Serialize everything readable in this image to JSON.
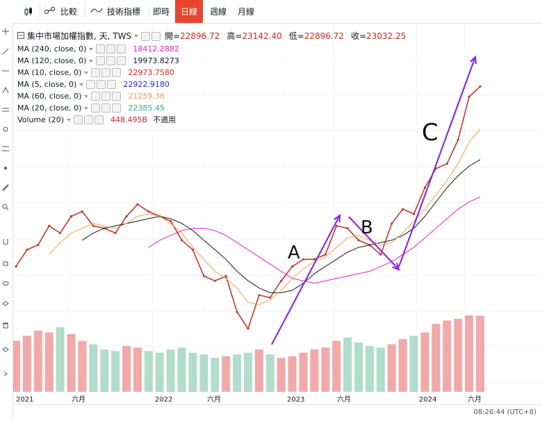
{
  "toolbar": {
    "compare": "比較",
    "indicators": "技術指標",
    "realtime": "即時",
    "daily": "日線",
    "weekly": "週線",
    "monthly": "月線"
  },
  "legend": {
    "title": "集中市場加權指數, 天, TWS",
    "open_label": "開=",
    "open": "22896.72",
    "high_label": "高=",
    "high": "23142.40",
    "low_label": "低=",
    "low": "22896.72",
    "close_label": "收=",
    "close": "23032.25",
    "indicators": [
      {
        "name": "MA (240, close, 0)",
        "value": "18412.2882",
        "color": "#e91ec8"
      },
      {
        "name": "MA (120, close, 0)",
        "value": "19973.8273",
        "color": "#131722"
      },
      {
        "name": "MA (10, close, 0)",
        "value": "22973.7580",
        "color": "#d0271d"
      },
      {
        "name": "MA (5, close, 0)",
        "value": "22922.9180",
        "color": "#1f2fd0"
      },
      {
        "name": "MA (60, close, 0)",
        "value": "21259.36",
        "color": "#f0a24a"
      },
      {
        "name": "MA (20, close, 0)",
        "value": "22385.45",
        "color": "#39a88a"
      },
      {
        "name": "Volume (20)",
        "value": "448.495B",
        "color": "#d0271d",
        "extra": "不適用"
      }
    ]
  },
  "status": {
    "time": "08:26:44 (UTC+8)"
  },
  "annotations": {
    "a": "A",
    "b": "B",
    "c": "C"
  },
  "chart_data": {
    "type": "line",
    "title": "集中市場加權指數, 天, TWS",
    "x_tick_labels": [
      "2021",
      "六月",
      "2022",
      "六月",
      "2023",
      "六月",
      "2024",
      "六月"
    ],
    "x": [
      "2021-01",
      "2021-02",
      "2021-03",
      "2021-04",
      "2021-05",
      "2021-06",
      "2021-07",
      "2021-08",
      "2021-09",
      "2021-10",
      "2021-11",
      "2021-12",
      "2022-01",
      "2022-02",
      "2022-03",
      "2022-04",
      "2022-05",
      "2022-06",
      "2022-07",
      "2022-08",
      "2022-09",
      "2022-10",
      "2022-11",
      "2022-12",
      "2023-01",
      "2023-02",
      "2023-03",
      "2023-04",
      "2023-05",
      "2023-06",
      "2023-07",
      "2023-08",
      "2023-09",
      "2023-10",
      "2023-11",
      "2023-12",
      "2024-01",
      "2024-02",
      "2024-03",
      "2024-04",
      "2024-05",
      "2024-06",
      "2024-07"
    ],
    "series": [
      {
        "name": "集中市場加權指數",
        "color": "#c0392b",
        "values": [
          15500,
          16200,
          16400,
          17200,
          16900,
          17600,
          17800,
          17200,
          17100,
          16900,
          17600,
          18100,
          17800,
          17600,
          17400,
          16600,
          16200,
          15100,
          14900,
          15100,
          13600,
          12900,
          14300,
          14200,
          14900,
          15500,
          15800,
          15800,
          16000,
          17200,
          17100,
          16600,
          16400,
          16000,
          17300,
          17900,
          17700,
          18800,
          19600,
          19800,
          20800,
          22600,
          23032
        ]
      },
      {
        "name": "MA (240, close, 0)",
        "color": "#e91ec8",
        "values": [
          null,
          null,
          null,
          null,
          null,
          null,
          null,
          null,
          null,
          null,
          null,
          null,
          16300,
          16600,
          16800,
          17000,
          17100,
          17100,
          17000,
          16800,
          16500,
          16200,
          15900,
          15600,
          15300,
          15000,
          14900,
          14800,
          14900,
          15000,
          15100,
          15200,
          15300,
          15500,
          15700,
          16000,
          16300,
          16700,
          17100,
          17500,
          17900,
          18200,
          18412
        ]
      },
      {
        "name": "MA (120, close, 0)",
        "color": "#131722",
        "values": [
          null,
          null,
          null,
          null,
          null,
          null,
          16600,
          16900,
          17100,
          17200,
          17300,
          17400,
          17500,
          17600,
          17500,
          17300,
          17000,
          16600,
          16200,
          15800,
          15300,
          14900,
          14600,
          14400,
          14400,
          14500,
          14800,
          15200,
          15500,
          15800,
          16100,
          16300,
          16400,
          16500,
          16600,
          16800,
          17100,
          17600,
          18200,
          18800,
          19300,
          19700,
          19974
        ]
      },
      {
        "name": "MA (60, close, 0)",
        "color": "#f0a24a",
        "values": [
          null,
          null,
          null,
          16000,
          16500,
          16900,
          17100,
          17300,
          17200,
          17100,
          17300,
          17600,
          17700,
          17600,
          17300,
          16900,
          16300,
          15800,
          15300,
          15000,
          14600,
          14000,
          13900,
          14100,
          14500,
          15000,
          15400,
          15700,
          15900,
          16300,
          16700,
          16800,
          16600,
          16400,
          16500,
          16900,
          17400,
          17900,
          18500,
          19100,
          19800,
          20700,
          21259
        ]
      }
    ],
    "volume": {
      "name": "Volume (20)",
      "values": [
        300,
        330,
        360,
        350,
        380,
        340,
        300,
        280,
        250,
        240,
        270,
        260,
        240,
        230,
        250,
        260,
        230,
        220,
        200,
        210,
        220,
        230,
        250,
        220,
        200,
        210,
        230,
        250,
        260,
        300,
        320,
        290,
        270,
        260,
        280,
        310,
        330,
        350,
        400,
        420,
        430,
        450,
        448
      ]
    },
    "ylim": [
      12000,
      24500
    ],
    "legend_position": "top-left"
  }
}
